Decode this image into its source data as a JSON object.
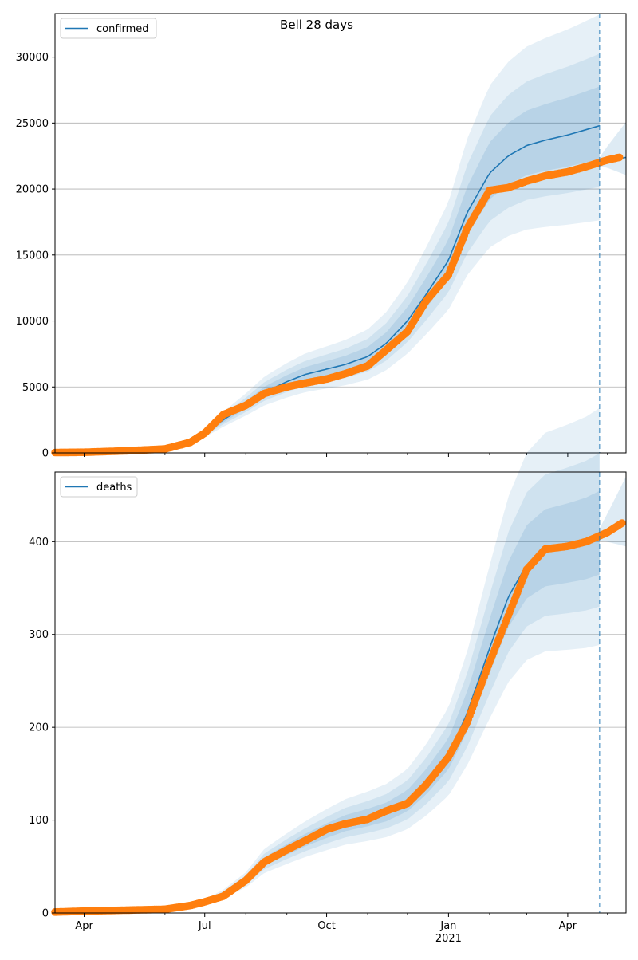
{
  "title": "Bell 28 days",
  "colors": {
    "line": "#1f77b4",
    "observed": "#ff7f0e",
    "band": "#1f77b4",
    "grid": "#b0b0b0",
    "forecast_line": "#1f77b4"
  },
  "x_axis": {
    "start": "2020-03-10",
    "end": "2021-05-15",
    "ticks": [
      {
        "date": "2020-04-01",
        "label": "Apr",
        "sub": ""
      },
      {
        "date": "2020-07-01",
        "label": "Jul",
        "sub": ""
      },
      {
        "date": "2020-10-01",
        "label": "Oct",
        "sub": ""
      },
      {
        "date": "2021-01-01",
        "label": "Jan",
        "sub": "2021"
      },
      {
        "date": "2021-04-01",
        "label": "Apr",
        "sub": ""
      }
    ],
    "minor_ticks": [
      "2020-05-01",
      "2020-06-01",
      "2020-08-01",
      "2020-09-01",
      "2020-11-01",
      "2020-12-01",
      "2021-02-01",
      "2021-03-01",
      "2021-05-01"
    ],
    "forecast_date": "2021-04-25"
  },
  "chart_data": [
    {
      "type": "line",
      "legend": "confirmed",
      "legend_position": "top-left",
      "ylim": [
        0,
        33300
      ],
      "yticks": [
        0,
        5000,
        10000,
        15000,
        20000,
        25000,
        30000
      ],
      "grid": true,
      "model": {
        "dates": [
          "2020-03-10",
          "2020-04-01",
          "2020-05-01",
          "2020-06-01",
          "2020-06-20",
          "2020-07-01",
          "2020-07-15",
          "2020-08-01",
          "2020-08-15",
          "2020-09-01",
          "2020-09-15",
          "2020-10-01",
          "2020-10-15",
          "2020-11-01",
          "2020-11-15",
          "2020-12-01",
          "2020-12-15",
          "2021-01-01",
          "2021-01-15",
          "2021-02-01",
          "2021-02-15",
          "2021-03-01",
          "2021-03-15",
          "2021-04-01",
          "2021-04-15",
          "2021-04-25"
        ],
        "values": [
          30,
          50,
          150,
          300,
          800,
          1500,
          2500,
          3600,
          4600,
          5400,
          5950,
          6350,
          6700,
          7300,
          8300,
          10000,
          12000,
          14600,
          18200,
          21200,
          22500,
          23300,
          23700,
          24100,
          24500,
          24800
        ],
        "after_dates": [
          "2021-04-25",
          "2021-05-01",
          "2021-05-15"
        ],
        "after_values": [
          21950,
          22150,
          22400
        ]
      },
      "observed": {
        "dates": [
          "2020-03-10",
          "2020-04-01",
          "2020-05-01",
          "2020-06-01",
          "2020-06-20",
          "2020-07-01",
          "2020-07-15",
          "2020-08-01",
          "2020-08-15",
          "2020-09-01",
          "2020-09-15",
          "2020-10-01",
          "2020-10-15",
          "2020-11-01",
          "2020-11-15",
          "2020-12-01",
          "2020-12-15",
          "2021-01-01",
          "2021-01-15",
          "2021-02-01",
          "2021-02-15",
          "2021-03-01",
          "2021-03-15",
          "2021-04-01",
          "2021-04-15",
          "2021-05-01",
          "2021-05-10"
        ],
        "values": [
          30,
          50,
          150,
          300,
          800,
          1500,
          2900,
          3600,
          4500,
          5000,
          5300,
          5600,
          6000,
          6600,
          7800,
          9200,
          11500,
          13500,
          17000,
          19900,
          20100,
          20600,
          21000,
          21300,
          21700,
          22200,
          22400
        ]
      }
    },
    {
      "type": "line",
      "legend": "deaths",
      "legend_position": "top-left",
      "ylim": [
        0,
        475
      ],
      "yticks": [
        0,
        100,
        200,
        300,
        400
      ],
      "grid": true,
      "model": {
        "dates": [
          "2020-03-10",
          "2020-04-01",
          "2020-05-01",
          "2020-06-01",
          "2020-06-20",
          "2020-07-01",
          "2020-07-15",
          "2020-08-01",
          "2020-08-15",
          "2020-09-01",
          "2020-09-15",
          "2020-10-01",
          "2020-10-15",
          "2020-11-01",
          "2020-11-15",
          "2020-12-01",
          "2020-12-15",
          "2021-01-01",
          "2021-01-15",
          "2021-02-01",
          "2021-02-15",
          "2021-03-01",
          "2021-03-15",
          "2021-04-01",
          "2021-04-15",
          "2021-04-25"
        ],
        "values": [
          1,
          2,
          3,
          4,
          8,
          12,
          20,
          35,
          55,
          68,
          78,
          88,
          96,
          102,
          108,
          120,
          140,
          170,
          215,
          285,
          340,
          375,
          390,
          395,
          400,
          406
        ],
        "after_dates": [
          "2021-04-25",
          "2021-05-01",
          "2021-05-15"
        ],
        "after_values": [
          406,
          410,
          420
        ]
      },
      "observed": {
        "dates": [
          "2020-03-10",
          "2020-04-01",
          "2020-05-01",
          "2020-06-01",
          "2020-06-20",
          "2020-07-01",
          "2020-07-15",
          "2020-08-01",
          "2020-08-15",
          "2020-09-01",
          "2020-09-15",
          "2020-10-01",
          "2020-10-15",
          "2020-11-01",
          "2020-11-15",
          "2020-12-01",
          "2020-12-15",
          "2021-01-01",
          "2021-01-15",
          "2021-02-01",
          "2021-02-15",
          "2021-03-01",
          "2021-03-15",
          "2021-04-01",
          "2021-04-15",
          "2021-05-01",
          "2021-05-12"
        ],
        "values": [
          1,
          2,
          3,
          4,
          8,
          12,
          18,
          35,
          55,
          68,
          78,
          90,
          96,
          101,
          110,
          118,
          138,
          168,
          205,
          270,
          320,
          370,
          392,
          395,
          400,
          410,
          420
        ]
      }
    }
  ]
}
